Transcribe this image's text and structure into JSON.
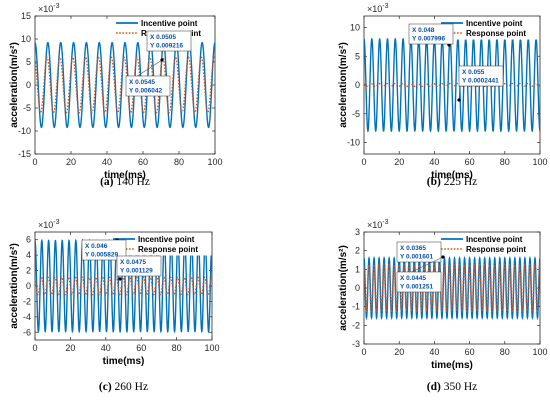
{
  "colors": {
    "incentive": "#0072BD",
    "response": "#D95319",
    "datatip_text": "#0a4fa8",
    "axis": "#262626"
  },
  "chart_data": [
    {
      "type": "line",
      "panel": "a",
      "caption_label": "(a)",
      "caption_text": "140 Hz",
      "frequency_hz": 140,
      "exponent_label": "×10",
      "exponent_power": "-3",
      "xlabel": "time(ms)",
      "ylabel": "acceleration(m/s²)",
      "xlim": [
        0,
        100
      ],
      "ylim": [
        -15,
        15
      ],
      "xticks": [
        0,
        20,
        40,
        60,
        80,
        100
      ],
      "yticks": [
        -15,
        -10,
        -5,
        0,
        5,
        10,
        15
      ],
      "series": [
        {
          "name": "Incentive point",
          "style": "solid",
          "amplitude": 0.00921,
          "offset": 0
        },
        {
          "name": "Response point",
          "style": "dotted",
          "amplitude": 0.00604,
          "offset": 0
        }
      ],
      "datatips": [
        {
          "x_text": "X 0.0505",
          "y_text": "Y 0.009216",
          "x": 50.5,
          "y": 9.216
        },
        {
          "x_text": "X 0.0545",
          "y_text": "Y 0.006042",
          "x": 54.5,
          "y": 6.042
        }
      ]
    },
    {
      "type": "line",
      "panel": "b",
      "caption_label": "(b)",
      "caption_text": "225 Hz",
      "frequency_hz": 225,
      "exponent_label": "×10",
      "exponent_power": "-3",
      "xlabel": "time(ms)",
      "ylabel": "acceleration(m/s²)",
      "xlim": [
        0,
        100
      ],
      "ylim": [
        -12,
        12
      ],
      "xticks": [
        0,
        20,
        40,
        60,
        80,
        100
      ],
      "yticks": [
        -10,
        -5,
        0,
        5,
        10
      ],
      "series": [
        {
          "name": "Incentive point",
          "style": "solid",
          "amplitude": 0.008,
          "offset": 0
        },
        {
          "name": "Response point",
          "style": "dotted",
          "amplitude": 0.00025,
          "offset": 0
        }
      ],
      "datatips": [
        {
          "x_text": "X 0.048",
          "y_text": "Y 0.007996",
          "x": 48,
          "y": 7.996
        },
        {
          "x_text": "X 0.055",
          "y_text": "Y 0.0002441",
          "x": 55,
          "y": 0.2441
        }
      ]
    },
    {
      "type": "line",
      "panel": "c",
      "caption_label": "(c)",
      "caption_text": "260 Hz",
      "frequency_hz": 260,
      "exponent_label": "×10",
      "exponent_power": "-3",
      "xlabel": "time(ms)",
      "ylabel": "acceleration(m/s²)",
      "xlim": [
        0,
        100
      ],
      "ylim": [
        -7,
        7
      ],
      "xticks": [
        0,
        20,
        40,
        60,
        80,
        100
      ],
      "yticks": [
        -6,
        -4,
        -2,
        0,
        2,
        4,
        6
      ],
      "series": [
        {
          "name": "Incentive point",
          "style": "solid",
          "amplitude": 0.0059,
          "offset": 0
        },
        {
          "name": "Response point",
          "style": "dotted",
          "amplitude": 0.00113,
          "offset": 0
        }
      ],
      "datatips": [
        {
          "x_text": "X 0.046",
          "y_text": "Y 0.005829",
          "x": 46,
          "y": 5.829
        },
        {
          "x_text": "X 0.0475",
          "y_text": "Y 0.001129",
          "x": 47.5,
          "y": 1.129
        }
      ]
    },
    {
      "type": "line",
      "panel": "d",
      "caption_label": "(d)",
      "caption_text": "350 Hz",
      "frequency_hz": 350,
      "exponent_label": "×10",
      "exponent_power": "-3",
      "xlabel": "time(ms)",
      "ylabel": "acceleration(m/s²)",
      "xlim": [
        0,
        100
      ],
      "ylim": [
        -3,
        3
      ],
      "xticks": [
        0,
        20,
        40,
        60,
        80,
        100
      ],
      "yticks": [
        -3,
        -2,
        -1,
        0,
        1,
        2,
        3
      ],
      "series": [
        {
          "name": "Incentive point",
          "style": "solid",
          "amplitude": 0.0016,
          "offset": 0
        },
        {
          "name": "Response point",
          "style": "dotted",
          "amplitude": 0.00125,
          "offset": 0
        }
      ],
      "datatips": [
        {
          "x_text": "X 0.0365",
          "y_text": "Y 0.001601",
          "x": 36.5,
          "y": 1.601
        },
        {
          "x_text": "X 0.0445",
          "y_text": "Y 0.001251",
          "x": 44.5,
          "y": 1.251
        }
      ]
    }
  ]
}
